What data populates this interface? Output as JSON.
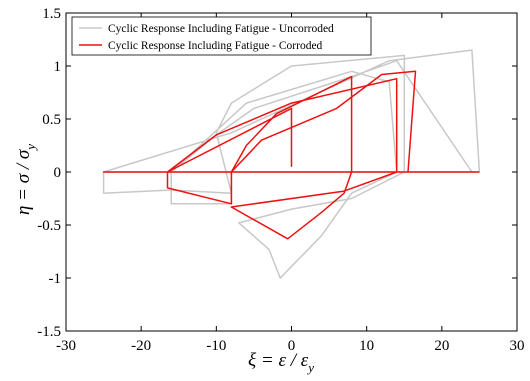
{
  "chart_data": {
    "type": "line",
    "xlabel": "ξ = ε / ε",
    "xlabel_sub": "y",
    "ylabel": "η = σ / σ",
    "ylabel_sub": "y",
    "xlim": [
      -30,
      30
    ],
    "ylim": [
      -1.5,
      1.5
    ],
    "xticks": [
      -30,
      -20,
      -10,
      0,
      10,
      20,
      30
    ],
    "yticks": [
      -1.5,
      -1,
      -0.5,
      0,
      0.5,
      1,
      1.5
    ],
    "xtick_labels": [
      "-30",
      "-20",
      "-10",
      "0",
      "10",
      "20",
      "30"
    ],
    "ytick_labels": [
      "-1.5",
      "-1",
      "-0.5",
      "0",
      "0.5",
      "1",
      "1.5"
    ],
    "grid": false,
    "legend_position": "top-left",
    "series": [
      {
        "name": "Cyclic Response Including Fatigue - Uncorroded",
        "color": "#c8c8c8",
        "points": [
          [
            -25,
            0
          ],
          [
            25,
            0
          ],
          [
            24,
            1.15
          ],
          [
            13,
            1.05
          ],
          [
            -8,
            0.37
          ],
          [
            -25,
            0.0
          ],
          [
            -25,
            -0.2
          ],
          [
            -16,
            -0.17
          ],
          [
            -8,
            -0.2
          ],
          [
            -10,
            0.37
          ],
          [
            -8,
            0.65
          ],
          [
            0,
            1.0
          ],
          [
            15,
            1.1
          ],
          [
            15,
            0.0
          ],
          [
            8,
            -0.25
          ],
          [
            0,
            -0.35
          ],
          [
            -7,
            -0.48
          ],
          [
            -3,
            -0.73
          ],
          [
            -1.5,
            -1.0
          ],
          [
            4,
            -0.6
          ],
          [
            8,
            -0.2
          ],
          [
            14,
            0.0
          ],
          [
            13,
            0.85
          ],
          [
            8,
            0.95
          ],
          [
            -6,
            0.65
          ],
          [
            -16,
            0.0
          ],
          [
            -16,
            -0.3
          ],
          [
            -8,
            -0.3
          ],
          [
            -8,
            0.0
          ],
          [
            -16,
            0.0
          ],
          [
            -10,
            0.35
          ],
          [
            -5,
            0.6
          ],
          [
            8,
            0.9
          ],
          [
            14,
            1.05
          ],
          [
            24,
            0.0
          ]
        ]
      },
      {
        "name": "Cyclic Response Including Fatigue - Corroded",
        "color": "#ee1111",
        "points": [
          [
            0,
            0.05
          ],
          [
            0,
            0.6
          ],
          [
            -16.5,
            0.0
          ],
          [
            -16.5,
            -0.15
          ],
          [
            -8,
            -0.3
          ],
          [
            -8,
            0.0
          ],
          [
            -6,
            0.25
          ],
          [
            -2,
            0.55
          ],
          [
            8,
            0.9
          ],
          [
            8,
            0.0
          ],
          [
            7,
            -0.2
          ],
          [
            4,
            -0.38
          ],
          [
            -0.5,
            -0.63
          ],
          [
            -8,
            -0.33
          ],
          [
            7,
            -0.18
          ],
          [
            14,
            0.0
          ],
          [
            14,
            0.88
          ],
          [
            0,
            0.65
          ],
          [
            -10,
            0.35
          ],
          [
            -16.5,
            0.0
          ],
          [
            15.5,
            0.0
          ],
          [
            16.5,
            0.95
          ],
          [
            12,
            0.92
          ],
          [
            6,
            0.6
          ],
          [
            -4,
            0.3
          ],
          [
            -8,
            0.0
          ],
          [
            -25,
            0.0
          ],
          [
            25,
            0.0
          ]
        ]
      }
    ]
  }
}
